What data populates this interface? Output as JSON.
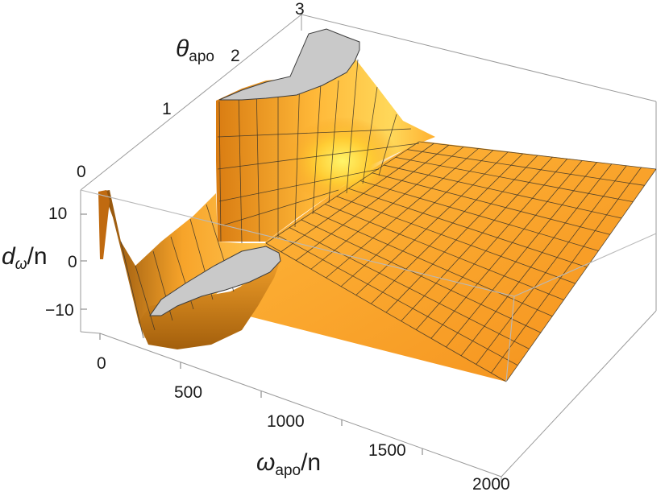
{
  "chart_data": {
    "type": "surface3d",
    "title": "",
    "x_axis": {
      "label_symbol": "ω",
      "label_subscript": "apo",
      "label_suffix": "/n",
      "range": [
        0,
        2000
      ],
      "ticks": [
        "0",
        "500",
        "1000",
        "1500",
        "2000"
      ]
    },
    "y_axis": {
      "label_symbol": "θ",
      "label_subscript": "apo",
      "label_suffix": "",
      "range": [
        0,
        3
      ],
      "ticks": [
        "0",
        "1",
        "2",
        "3"
      ]
    },
    "z_axis": {
      "label_symbol": "d",
      "label_subscript": "ω",
      "label_suffix": "/n",
      "range": [
        -15,
        15
      ],
      "ticks": [
        "10",
        "0",
        "−10"
      ]
    },
    "surface": {
      "description_values": [
        {
          "omega_apo": 0,
          "theta_apo": 0,
          "d": 12
        },
        {
          "omega_apo": 100,
          "theta_apo": 0.5,
          "d": -14
        },
        {
          "omega_apo": 250,
          "theta_apo": 1.0,
          "d": -16
        },
        {
          "omega_apo": 500,
          "theta_apo": 1.5,
          "d": -8
        },
        {
          "omega_apo": 500,
          "theta_apo": 2.5,
          "d": 15
        },
        {
          "omega_apo": 800,
          "theta_apo": 2.2,
          "d": 8
        },
        {
          "omega_apo": 1500,
          "theta_apo": 1.5,
          "d": 0
        },
        {
          "omega_apo": 2000,
          "theta_apo": 3.0,
          "d": 0
        }
      ],
      "clipped_above": 15,
      "clipped_below": -15
    },
    "colors": {
      "surface_light": "#fff27a",
      "surface_mid": "#ffb030",
      "surface_dark": "#f08f1a",
      "shadow": "#9a5c10",
      "mesh": "#3a3328",
      "clip_cap": "#c9c9c9",
      "box": "#9a9a9a"
    },
    "grid": false,
    "box": true
  }
}
